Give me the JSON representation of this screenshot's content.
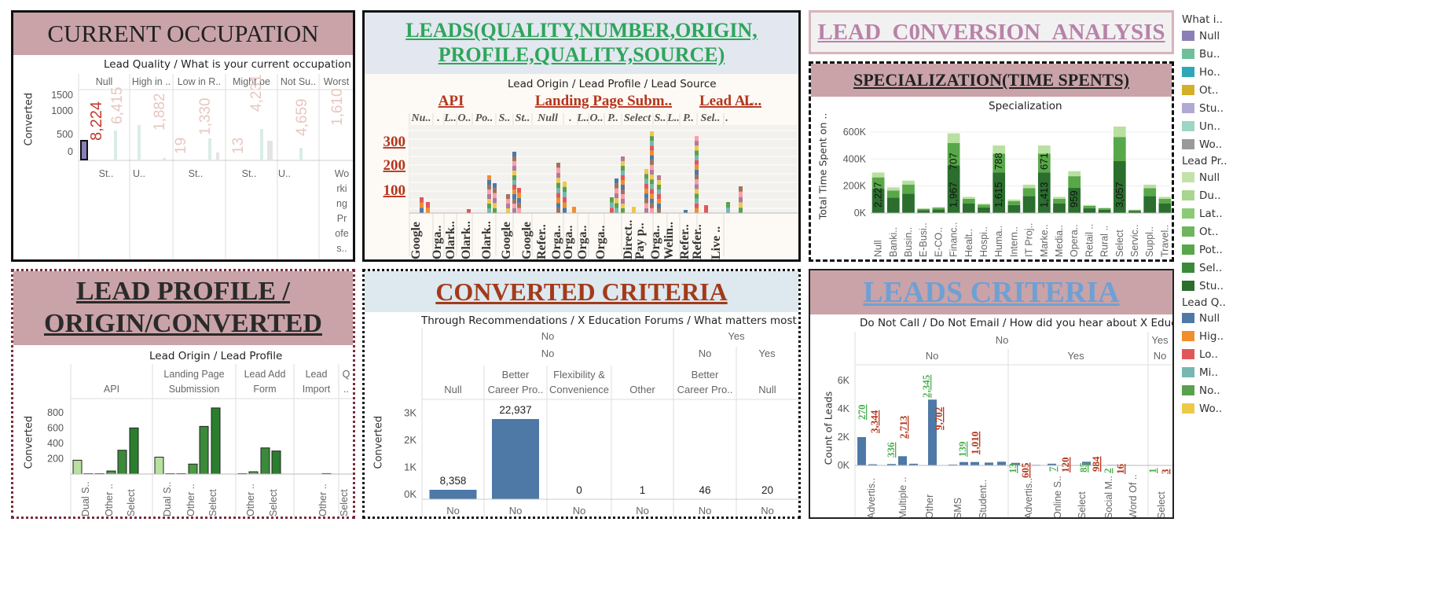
{
  "occupation": {
    "title": "CURRENT OCCUPATION",
    "subtitle": "Lead Quality  /  What is your current occupation",
    "columns": [
      "Null",
      "High in ..",
      "Low in R..",
      "Might be",
      "Not Su..",
      "Worst"
    ],
    "yaxis": "Converted",
    "yticks": [
      "1500",
      "1000",
      "500",
      "0"
    ],
    "bar_labels": [
      "8,224",
      "6,415",
      "1,882",
      "19",
      "1,330",
      "13",
      "4,231",
      "4,659",
      "1,610"
    ],
    "rows": [
      "St..",
      "U..",
      "St..",
      "St..",
      "U..",
      "Wo\nrki\nng\nPr\nofe\ns.."
    ]
  },
  "leads": {
    "title_line1": "LEADS(QUALITY,NUMBER,ORIGIN,",
    "title_line2": "PROFILE,QUALITY,SOURCE)",
    "subtitle": "Lead Origin  /  Lead Profile  /  Lead Source",
    "origins": [
      "API",
      "Landing Page Subm..",
      "Lead A..",
      "L.."
    ],
    "profiles": [
      "Nu..",
      ".",
      "L..",
      "O..",
      "Po..",
      "S..",
      "St..",
      "Null",
      ".",
      "L..",
      "O..",
      "P..",
      "Select",
      "S..",
      "L..",
      "P..",
      "Sel..",
      "."
    ],
    "yticks": [
      "300",
      "200",
      "100"
    ],
    "sources": [
      "Google",
      "Orga..",
      "Olark..",
      "Olark..",
      "Olark..",
      "Google",
      "Google",
      "Refer..",
      "Orga..",
      "Orga..",
      "Orga..",
      "Orga..",
      "Direct..",
      "Pay p..",
      "Orga..",
      "Welin..",
      "Refer..",
      "Refer..",
      "Live .."
    ]
  },
  "conversion": {
    "title": "LEAD_C0NVERSION_ANALYSIS"
  },
  "specialization": {
    "title": "SPECIALIZATION(TIME SPENTS)",
    "subtitle": "Specialization",
    "yaxis": "Total Time Spent on ..",
    "yticks": [
      "600K",
      "400K",
      "200K",
      "0K"
    ],
    "categories": [
      "Null",
      "Banki..",
      "Busin..",
      "E-Busi..",
      "E-CO..",
      "Financ..",
      "Healt..",
      "Hospi..",
      "Huma..",
      "Intern..",
      "IT Proj..",
      "Marke..",
      "Media..",
      "Opera..",
      "Retail ..",
      "Rural ..",
      "Select",
      "Servic..",
      "Suppl..",
      "Travel.."
    ],
    "totals": [
      300,
      190,
      240,
      35,
      45,
      590,
      120,
      70,
      500,
      100,
      210,
      500,
      120,
      310,
      60,
      40,
      640,
      25,
      210,
      120
    ],
    "labels": [
      {
        "i": 0,
        "text": "2,227"
      },
      {
        "i": 5,
        "text": "1,967"
      },
      {
        "i": 5,
        "text": "707"
      },
      {
        "i": 8,
        "text": "1,615"
      },
      {
        "i": 8,
        "text": "788"
      },
      {
        "i": 11,
        "text": "1,413"
      },
      {
        "i": 11,
        "text": "671"
      },
      {
        "i": 13,
        "text": "959"
      },
      {
        "i": 16,
        "text": "3,057"
      }
    ]
  },
  "legends": {
    "occupation_title": "What i..",
    "occupation": [
      {
        "name": "Null",
        "color": "#8b7fb8"
      },
      {
        "name": "Bu..",
        "color": "#6fbf9a"
      },
      {
        "name": "Ho..",
        "color": "#2ea8b8"
      },
      {
        "name": "Ot..",
        "color": "#d4b028"
      },
      {
        "name": "Stu..",
        "color": "#b2a8d4"
      },
      {
        "name": "Un..",
        "color": "#9ed6c4"
      },
      {
        "name": "Wo..",
        "color": "#9a9a9a"
      }
    ],
    "profile_title": "Lead Pr..",
    "profile": [
      {
        "name": "Null",
        "color": "#c2e3a8"
      },
      {
        "name": "Du..",
        "color": "#a8d68e"
      },
      {
        "name": "Lat..",
        "color": "#8ccb76"
      },
      {
        "name": "Ot..",
        "color": "#6fb55e"
      },
      {
        "name": "Pot..",
        "color": "#58a84a"
      },
      {
        "name": "Sel..",
        "color": "#3a8a3a"
      },
      {
        "name": "Stu..",
        "color": "#2b6e2e"
      }
    ],
    "quality_title": "Lead Q..",
    "quality": [
      {
        "name": "Null",
        "color": "#4e79a7"
      },
      {
        "name": "Hig..",
        "color": "#f28e2b"
      },
      {
        "name": "Lo..",
        "color": "#e15759"
      },
      {
        "name": "Mi..",
        "color": "#76b7b2"
      },
      {
        "name": "No..",
        "color": "#59a14f"
      },
      {
        "name": "Wo..",
        "color": "#edc948"
      }
    ]
  },
  "profile_origin": {
    "title_line1": "LEAD PROFILE /",
    "title_line2": "ORIGIN/CONVERTED",
    "subtitle": "Lead Origin  /  Lead Profile",
    "columns": [
      "API",
      "Landing Page\nSubmission",
      "Lead Add\nForm",
      "Lead\nImport",
      "Q\n.."
    ],
    "yaxis": "Converted",
    "yticks": [
      "800",
      "600",
      "400",
      "200"
    ],
    "xlabels": [
      "Dual S..",
      "Other ..",
      "Select",
      "Dual S..",
      "Other ..",
      "Select",
      "Other ..",
      "Select",
      "Other ..",
      "Select"
    ]
  },
  "converted": {
    "title": "CONVERTED CRITERIA",
    "subtitle": "Through Recommendations  /  X Education Forums  /  What matters most to yo..",
    "level1": [
      "No",
      "Yes"
    ],
    "level2": [
      "No",
      "No",
      "Yes"
    ],
    "columns": [
      "Null",
      "Better\nCareer Pro..",
      "Flexibility &\nConvenience",
      "Other",
      "Better\nCareer Pro..",
      "Null"
    ],
    "yaxis": "Converted",
    "yticks": [
      "3K",
      "2K",
      "1K",
      "0K"
    ],
    "values": [
      8358,
      22937,
      0,
      1,
      46,
      20
    ],
    "value_labels": [
      "8,358",
      "22,937",
      "0",
      "1",
      "46",
      "20"
    ],
    "bottom": [
      "No",
      "No",
      "No",
      "No",
      "No",
      "No"
    ]
  },
  "leads_criteria": {
    "title": "LEADS CRITERIA",
    "subtitle": "Do Not Call  /  Do Not Email  /  How did you hear about X Education",
    "level1": [
      "No",
      "Yes"
    ],
    "level2": [
      "No",
      "Yes",
      "No"
    ],
    "yaxis": "Count of Leads",
    "yticks": [
      "6K",
      "4K",
      "2K",
      "0K"
    ],
    "xlabels": [
      "Advertis..",
      "Multiple ..",
      "Other",
      "SMS",
      "Student..",
      "Advertis..",
      "Online S..",
      "Select",
      "Social M..",
      "Word Of ..",
      "Select"
    ],
    "green_labels": [
      "270",
      "336",
      "2,345",
      "139",
      "13",
      "7",
      "85",
      "2",
      "1"
    ],
    "red_labels": [
      "3,344",
      "2,713",
      "9,702",
      "1,010",
      "605",
      "120",
      "984",
      "16",
      "3"
    ]
  }
}
